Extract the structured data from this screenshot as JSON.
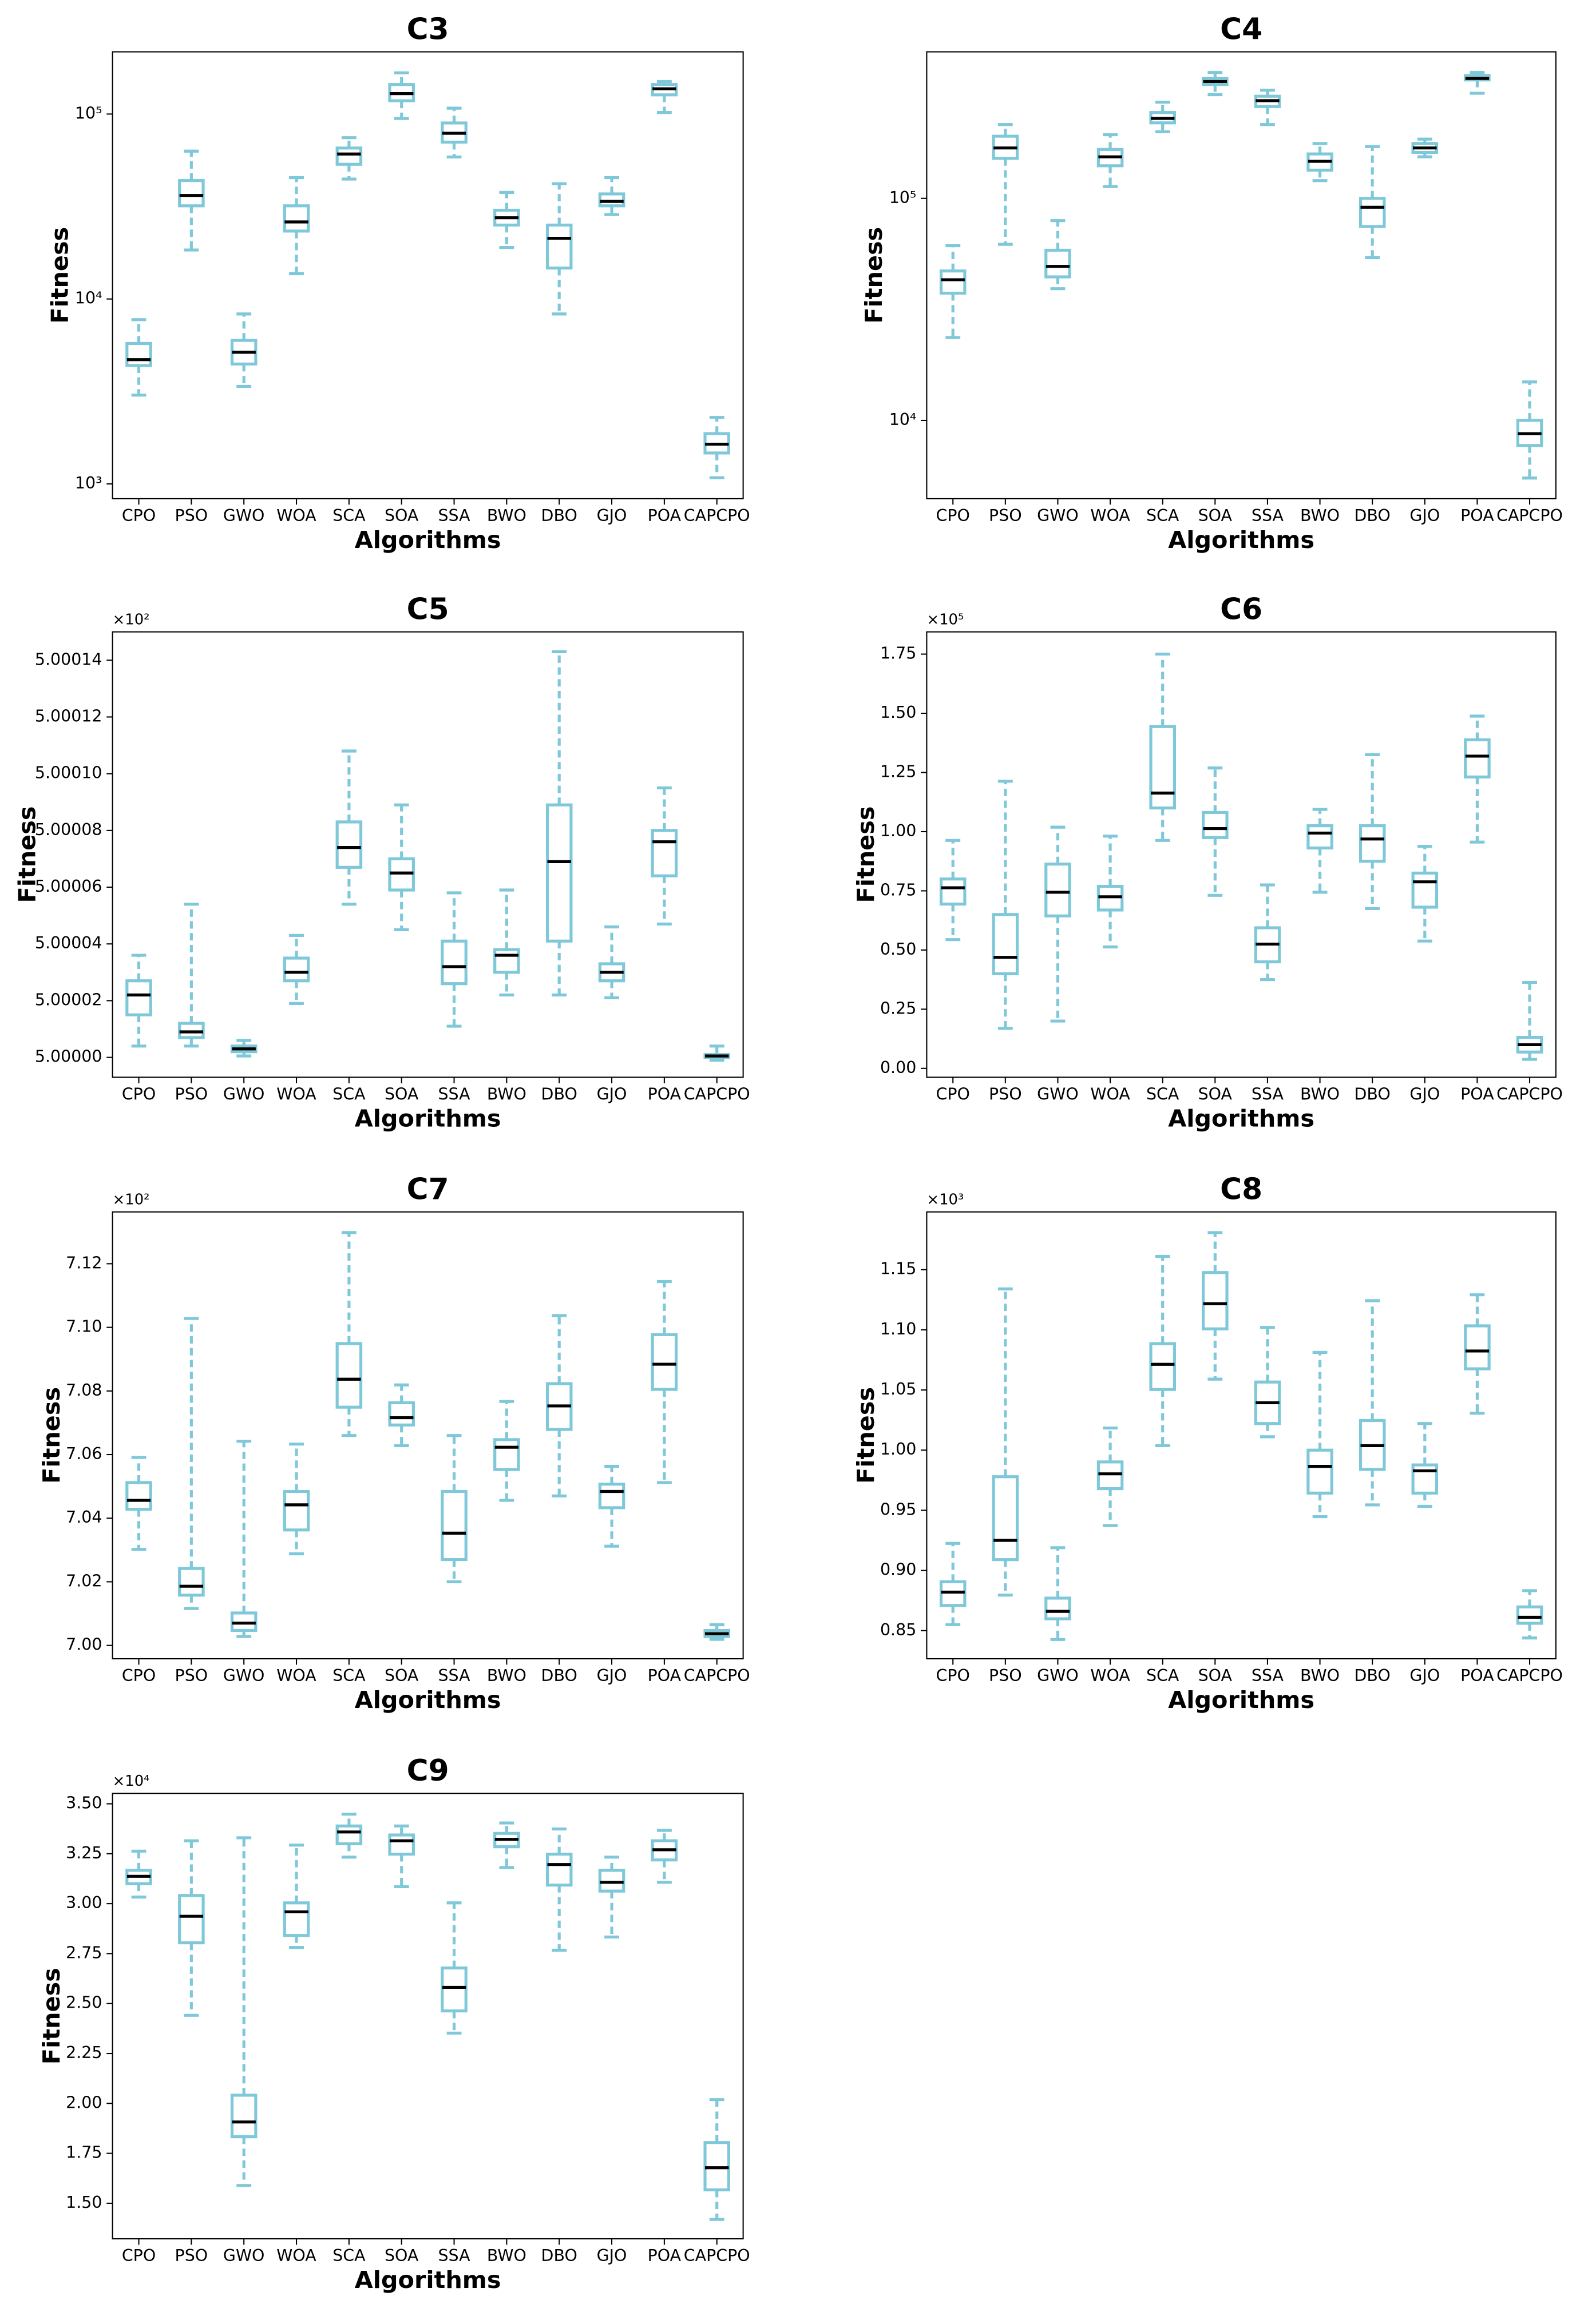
{
  "chart_data": [
    {
      "type": "box",
      "title": "C3",
      "xlabel": "Algorithms",
      "ylabel": "Fitness",
      "log": true,
      "color": "#7ec8d9",
      "median_color": "#000000",
      "categories": [
        "CPO",
        "PSO",
        "GWO",
        "WOA",
        "SCA",
        "SOA",
        "SSA",
        "BWO",
        "DBO",
        "GJO",
        "POA",
        "CAPCPO"
      ],
      "ylim": [
        832,
        217000
      ],
      "yticks": [
        {
          "value": 1000,
          "label": "10³"
        },
        {
          "value": 10000,
          "label": "10⁴"
        },
        {
          "value": 100000,
          "label": "10⁵"
        }
      ],
      "stats": [
        [
          3020,
          4365,
          4700,
          5750,
          7730
        ],
        [
          18400,
          31900,
          36300,
          43700,
          63000
        ],
        [
          3370,
          4450,
          5150,
          5970,
          8300
        ],
        [
          13700,
          23300,
          26100,
          31900,
          45300
        ],
        [
          44500,
          53500,
          60800,
          65500,
          74500
        ],
        [
          94600,
          118000,
          129000,
          144500,
          167000
        ],
        [
          58600,
          70500,
          78700,
          89500,
          107600
        ],
        [
          19000,
          25100,
          27500,
          30200,
          37700
        ],
        [
          8300,
          14700,
          21300,
          25100,
          42000
        ],
        [
          28600,
          31900,
          33700,
          37000,
          45300
        ],
        [
          102000,
          127000,
          137000,
          144500,
          150000
        ],
        [
          1080,
          1470,
          1640,
          1870,
          2290
        ]
      ]
    },
    {
      "type": "box",
      "title": "C4",
      "xlabel": "Algorithms",
      "ylabel": "Fitness",
      "log": true,
      "color": "#7ec8d9",
      "median_color": "#000000",
      "categories": [
        "CPO",
        "PSO",
        "GWO",
        "WOA",
        "SCA",
        "SOA",
        "SSA",
        "BWO",
        "DBO",
        "GJO",
        "POA",
        "CAPCPO"
      ],
      "ylim": [
        4440,
        457000
      ],
      "yticks": [
        {
          "value": 10000,
          "label": "10⁴"
        },
        {
          "value": 100000,
          "label": "10⁵"
        }
      ],
      "stats": [
        [
          23600,
          37400,
          43000,
          47100,
          61200
        ],
        [
          62100,
          151400,
          168600,
          190500,
          215000
        ],
        [
          39200,
          44300,
          49400,
          58400,
          79400
        ],
        [
          113000,
          140200,
          153800,
          166000,
          193500
        ],
        [
          199500,
          218800,
          229000,
          243600,
          271000
        ],
        [
          293000,
          326000,
          336000,
          346700,
          369000
        ],
        [
          215000,
          259000,
          275400,
          288400,
          307000
        ],
        [
          120200,
          134000,
          146800,
          158500,
          176600
        ],
        [
          54100,
          74700,
          91200,
          100000,
          171000
        ],
        [
          153800,
          161000,
          168600,
          176600,
          184900
        ],
        [
          297300,
          341500,
          346700,
          357500,
          369000
        ],
        [
          5500,
          7710,
          8710,
          10000,
          14900
        ]
      ]
    },
    {
      "type": "box",
      "title": "C5",
      "xlabel": "Algorithms",
      "ylabel": "Fitness",
      "log": false,
      "offset_label": "×10²",
      "color": "#7ec8d9",
      "median_color": "#000000",
      "categories": [
        "CPO",
        "PSO",
        "GWO",
        "WOA",
        "SCA",
        "SOA",
        "SSA",
        "BWO",
        "DBO",
        "GJO",
        "POA",
        "CAPCPO"
      ],
      "ylim": [
        4.999993,
        5.00015
      ],
      "yticks": [
        {
          "value": 5,
          "label": "5.00000"
        },
        {
          "value": 5.00002,
          "label": "5.00002"
        },
        {
          "value": 5.00004,
          "label": "5.00004"
        },
        {
          "value": 5.00006,
          "label": "5.00006"
        },
        {
          "value": 5.00008,
          "label": "5.00008"
        },
        {
          "value": 5.0001,
          "label": "5.00010"
        },
        {
          "value": 5.00012,
          "label": "5.00012"
        },
        {
          "value": 5.00014,
          "label": "5.00014"
        }
      ],
      "stats": [
        [
          5.000004,
          5.000015,
          5.000022,
          5.000027,
          5.000036
        ],
        [
          5.000004,
          5.000007,
          5.000009,
          5.000012,
          5.000054
        ],
        [
          5.0000005,
          5.000002,
          5.000003,
          5.000004,
          5.000006
        ],
        [
          5.000019,
          5.000027,
          5.00003,
          5.000035,
          5.000043
        ],
        [
          5.000054,
          5.000067,
          5.000074,
          5.000083,
          5.000108
        ],
        [
          5.000045,
          5.000059,
          5.000065,
          5.00007,
          5.000089
        ],
        [
          5.000011,
          5.000026,
          5.000032,
          5.000041,
          5.000058
        ],
        [
          5.000022,
          5.00003,
          5.000036,
          5.000038,
          5.000059
        ],
        [
          5.000022,
          5.000041,
          5.000069,
          5.000089,
          5.000143
        ],
        [
          5.000021,
          5.000027,
          5.00003,
          5.000033,
          5.000046
        ],
        [
          5.000047,
          5.000064,
          5.000076,
          5.00008,
          5.000095
        ],
        [
          4.999999,
          5,
          5.0000005,
          5.000001,
          5.000004
        ]
      ]
    },
    {
      "type": "box",
      "title": "C6",
      "xlabel": "Algorithms",
      "ylabel": "Fitness",
      "log": false,
      "offset_label": "×10⁵",
      "color": "#7ec8d9",
      "median_color": "#000000",
      "categories": [
        "CPO",
        "PSO",
        "GWO",
        "WOA",
        "SCA",
        "SOA",
        "SSA",
        "BWO",
        "DBO",
        "GJO",
        "POA",
        "CAPCPO"
      ],
      "ylim": [
        -0.0375,
        1.844
      ],
      "yticks": [
        {
          "value": 0,
          "label": "0.00"
        },
        0.25,
        {
          "value": 0.5,
          "label": "0.50"
        },
        0.75,
        {
          "value": 1,
          "label": "1.00"
        },
        1.25,
        {
          "value": 1.5,
          "label": "1.50"
        },
        1.75
      ],
      "stats": [
        [
          0.544,
          0.694,
          0.763,
          0.8,
          0.963
        ],
        [
          0.169,
          0.4,
          0.469,
          0.65,
          1.213
        ],
        [
          0.2,
          0.644,
          0.744,
          0.863,
          1.019
        ],
        [
          0.513,
          0.669,
          0.725,
          0.769,
          0.981
        ],
        [
          0.963,
          1.1,
          1.163,
          1.444,
          1.75
        ],
        [
          0.731,
          0.975,
          1.013,
          1.081,
          1.269
        ],
        [
          0.375,
          0.45,
          0.525,
          0.594,
          0.775
        ],
        [
          0.744,
          0.931,
          0.994,
          1.025,
          1.094
        ],
        [
          0.675,
          0.875,
          0.969,
          1.025,
          1.325
        ],
        [
          0.538,
          0.681,
          0.788,
          0.825,
          0.938
        ],
        [
          0.956,
          1.231,
          1.319,
          1.388,
          1.488
        ],
        [
          0.038,
          0.069,
          0.1,
          0.131,
          0.363
        ]
      ]
    },
    {
      "type": "box",
      "title": "C7",
      "xlabel": "Algorithms",
      "ylabel": "Fitness",
      "log": false,
      "offset_label": "×10²",
      "color": "#7ec8d9",
      "median_color": "#000000",
      "categories": [
        "CPO",
        "PSO",
        "GWO",
        "WOA",
        "SCA",
        "SOA",
        "SSA",
        "BWO",
        "DBO",
        "GJO",
        "POA",
        "CAPCPO"
      ],
      "ylim": [
        6.9958,
        7.1363
      ],
      "yticks": [
        {
          "value": 7,
          "label": "7.00"
        },
        7.02,
        7.04,
        7.06,
        7.08,
        {
          "value": 7.1,
          "label": "7.10"
        },
        7.12
      ],
      "stats": [
        [
          7.0302,
          7.0428,
          7.0456,
          7.0512,
          7.0591
        ],
        [
          7.0116,
          7.0158,
          7.0186,
          7.0242,
          7.1028
        ],
        [
          7.0028,
          7.0047,
          7.007,
          7.0102,
          7.0642
        ],
        [
          7.0288,
          7.0363,
          7.0442,
          7.0484,
          7.0633
        ],
        [
          7.066,
          7.0749,
          7.0837,
          7.0949,
          7.1298
        ],
        [
          7.0628,
          7.0693,
          7.0716,
          7.0763,
          7.0819
        ],
        [
          7.02,
          7.027,
          7.0353,
          7.0484,
          7.066
        ],
        [
          7.0456,
          7.0553,
          7.0623,
          7.0647,
          7.0767
        ],
        [
          7.047,
          7.0679,
          7.0753,
          7.0823,
          7.1037
        ],
        [
          7.0312,
          7.0433,
          7.0484,
          7.0507,
          7.0563
        ],
        [
          7.0512,
          7.0805,
          7.0884,
          7.0977,
          7.1144
        ],
        [
          7.0019,
          7.0028,
          7.0037,
          7.0047,
          7.0065
        ]
      ]
    },
    {
      "type": "box",
      "title": "C8",
      "xlabel": "Algorithms",
      "ylabel": "Fitness",
      "log": false,
      "offset_label": "×10³",
      "color": "#7ec8d9",
      "median_color": "#000000",
      "categories": [
        "CPO",
        "PSO",
        "GWO",
        "WOA",
        "SCA",
        "SOA",
        "SSA",
        "BWO",
        "DBO",
        "GJO",
        "POA",
        "CAPCPO"
      ],
      "ylim": [
        0.8266,
        1.198
      ],
      "yticks": [
        0.85,
        {
          "value": 0.9,
          "label": "0.90"
        },
        0.95,
        {
          "value": 1,
          "label": "1.00"
        },
        1.05,
        {
          "value": 1.1,
          "label": "1.10"
        },
        1.15
      ],
      "stats": [
        [
          0.8549,
          0.8709,
          0.882,
          0.8906,
          0.9225
        ],
        [
          0.8795,
          0.909,
          0.925,
          0.9779,
          1.134
        ],
        [
          0.8426,
          0.8598,
          0.866,
          0.877,
          0.9189
        ],
        [
          0.9373,
          0.968,
          0.9803,
          0.9902,
          1.0184
        ],
        [
          1.0037,
          1.0504,
          1.0713,
          1.0885,
          1.161
        ],
        [
          1.059,
          1.1008,
          1.1217,
          1.1476,
          1.1808
        ],
        [
          1.0111,
          1.0221,
          1.0394,
          1.0566,
          1.102
        ],
        [
          0.9447,
          0.9643,
          0.9865,
          1,
          1.0812
        ],
        [
          0.9545,
          0.984,
          1.0037,
          1.0246,
          1.1242
        ],
        [
          0.9533,
          0.9643,
          0.9828,
          0.9877,
          1.0221
        ],
        [
          1.0307,
          1.0676,
          1.0824,
          1.1033,
          1.1291
        ],
        [
          0.8439,
          0.8561,
          0.8611,
          0.8697,
          0.8832
        ]
      ]
    },
    {
      "type": "box",
      "title": "C9",
      "xlabel": "Algorithms",
      "ylabel": "Fitness",
      "log": false,
      "offset_label": "×10⁴",
      "color": "#7ec8d9",
      "median_color": "#000000",
      "categories": [
        "CPO",
        "PSO",
        "GWO",
        "WOA",
        "SCA",
        "SOA",
        "SSA",
        "BWO",
        "DBO",
        "GJO",
        "POA",
        "CAPCPO"
      ],
      "ylim": [
        1.322,
        3.552
      ],
      "yticks": [
        {
          "value": 1.5,
          "label": "1.50"
        },
        1.75,
        {
          "value": 2,
          "label": "2.00"
        },
        2.25,
        {
          "value": 2.5,
          "label": "2.50"
        },
        2.75,
        {
          "value": 3,
          "label": "3.00"
        },
        3.25,
        {
          "value": 3.5,
          "label": "3.50"
        }
      ],
      "stats": [
        [
          3.033,
          3.1,
          3.137,
          3.167,
          3.263
        ],
        [
          2.441,
          2.804,
          2.937,
          3.041,
          3.315
        ],
        [
          1.589,
          1.833,
          1.907,
          2.041,
          3.33
        ],
        [
          2.781,
          2.841,
          2.959,
          3.004,
          3.293
        ],
        [
          3.233,
          3.3,
          3.359,
          3.389,
          3.448
        ],
        [
          3.085,
          3.248,
          3.315,
          3.344,
          3.389
        ],
        [
          2.352,
          2.463,
          2.581,
          2.678,
          3.004
        ],
        [
          3.181,
          3.285,
          3.322,
          3.352,
          3.404
        ],
        [
          2.767,
          3.093,
          3.196,
          3.248,
          3.374
        ],
        [
          2.833,
          3.063,
          3.107,
          3.167,
          3.233
        ],
        [
          3.107,
          3.219,
          3.27,
          3.315,
          3.367
        ],
        [
          1.419,
          1.567,
          1.678,
          1.804,
          2.019
        ]
      ]
    }
  ]
}
